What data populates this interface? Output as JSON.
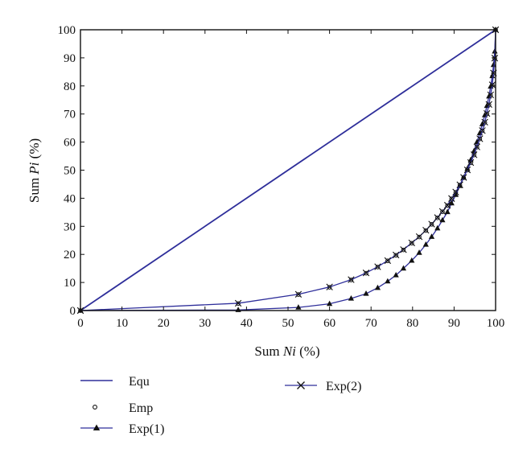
{
  "chart_data": {
    "type": "line",
    "xlabel": "Sum Ni (%)",
    "xlabel_prefix": "Sum ",
    "xlabel_var": "Ni",
    "xlabel_suffix": " (%)",
    "ylabel": "Sum Pi (%)",
    "ylabel_prefix": "Sum ",
    "ylabel_var": "Pi",
    "ylabel_suffix": " (%)",
    "xlim": [
      0,
      100
    ],
    "ylim": [
      0,
      100
    ],
    "xticks": [
      0,
      10,
      20,
      30,
      40,
      50,
      60,
      70,
      80,
      90,
      100
    ],
    "yticks": [
      0,
      10,
      20,
      30,
      40,
      50,
      60,
      70,
      80,
      90,
      100
    ],
    "grid": false,
    "legend_position": "bottom",
    "series": [
      {
        "name": "Equ",
        "style": "line",
        "color": "#2e2e9a",
        "x": [
          0,
          100
        ],
        "y": [
          0,
          100
        ]
      },
      {
        "name": "Emp",
        "style": "marker-circle",
        "color": "#111111",
        "x": [
          0,
          38,
          52.5,
          60,
          65.2,
          68.8,
          71.6,
          74,
          76,
          77.8,
          79.8,
          81.6,
          83.2,
          84.6,
          86,
          87.2,
          88.4,
          89.4,
          90.4,
          91.4,
          92.3,
          93.2,
          94,
          94.8,
          95.5,
          96.2,
          96.8,
          97.4,
          97.9,
          98.4,
          98.8,
          99.2,
          99.5,
          99.8,
          100
        ],
        "y": [
          0,
          2.5,
          5.7,
          8.3,
          10.9,
          13.3,
          15.5,
          17.7,
          19.7,
          21.6,
          24,
          26.2,
          28.5,
          30.7,
          33,
          35.2,
          37.4,
          39.8,
          42.1,
          44.7,
          47.3,
          50,
          52.6,
          55.4,
          58.2,
          61.1,
          64,
          67,
          70.1,
          73.3,
          76.7,
          80.3,
          84.5,
          89.8,
          100
        ]
      },
      {
        "name": "Exp(1)",
        "style": "line-triangle",
        "color": "#2e2e9a",
        "x": [
          0,
          38,
          52.5,
          60,
          65.2,
          68.8,
          71.6,
          74,
          76,
          77.8,
          79.8,
          81.6,
          83.2,
          84.6,
          86,
          87.2,
          88.4,
          89.4,
          90.4,
          91.4,
          92.3,
          93.2,
          94,
          94.8,
          95.5,
          96.2,
          96.8,
          97.4,
          97.9,
          98.4,
          98.8,
          99.2,
          99.5,
          99.8,
          100
        ],
        "y": [
          0,
          0.2,
          1.1,
          2.4,
          4.3,
          6,
          8.1,
          10.4,
          12.6,
          15,
          17.8,
          20.6,
          23.5,
          26.3,
          29.3,
          32.2,
          35.1,
          38.2,
          41.2,
          44.4,
          47.4,
          50.5,
          53.6,
          56.8,
          60,
          63.2,
          66.4,
          69.6,
          72.9,
          76.3,
          79.8,
          83.5,
          87.5,
          92.3,
          100
        ]
      },
      {
        "name": "Exp(2)",
        "style": "line-cross",
        "color": "#2e2e9a",
        "x": [
          0,
          38,
          52.5,
          60,
          65.2,
          68.8,
          71.6,
          74,
          76,
          77.8,
          79.8,
          81.6,
          83.2,
          84.6,
          86,
          87.2,
          88.4,
          89.4,
          90.4,
          91.4,
          92.3,
          93.2,
          94,
          94.8,
          95.5,
          96.2,
          96.8,
          97.4,
          97.9,
          98.4,
          98.8,
          99.2,
          99.5,
          99.8,
          100
        ],
        "y": [
          0,
          2.6,
          5.8,
          8.4,
          11,
          13.4,
          15.6,
          17.8,
          19.8,
          21.7,
          24.1,
          26.3,
          28.6,
          30.8,
          33.1,
          35.3,
          37.5,
          39.9,
          42.2,
          44.8,
          47.4,
          50.1,
          52.7,
          55.5,
          58.3,
          61.2,
          64.1,
          67.1,
          70.2,
          73.4,
          76.8,
          80.4,
          84.6,
          89.9,
          100
        ]
      }
    ]
  }
}
